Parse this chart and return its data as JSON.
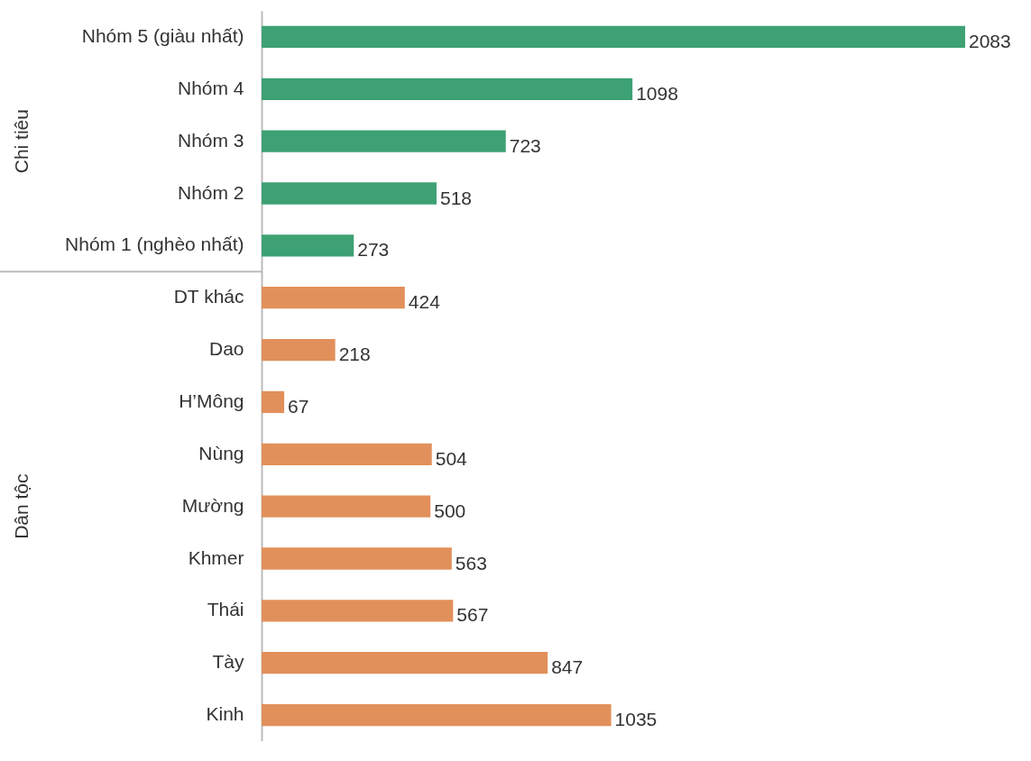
{
  "chart_data": {
    "type": "bar",
    "orientation": "horizontal",
    "data_labels": true,
    "categories": [
      "Nhóm 5 (giàu nhất)",
      "Nhóm 4",
      "Nhóm 3",
      "Nhóm 2",
      "Nhóm 1 (nghèo nhất)",
      "DT khác",
      "Dao",
      "H’Mông",
      "Nùng",
      "Mường",
      "Khmer",
      "Thái",
      "Tày",
      "Kinh"
    ],
    "annotations": [
      "Chi tiêu",
      "Dân tộc"
    ],
    "series": [
      {
        "color": "#3da173",
        "values": [
          2083,
          1098,
          723,
          518,
          273,
          null,
          null,
          null,
          null,
          null,
          null,
          null,
          null,
          null
        ]
      },
      {
        "color": "#e2905b",
        "values": [
          null,
          null,
          null,
          null,
          null,
          424,
          218,
          67,
          504,
          500,
          563,
          567,
          847,
          1035
        ]
      }
    ]
  }
}
